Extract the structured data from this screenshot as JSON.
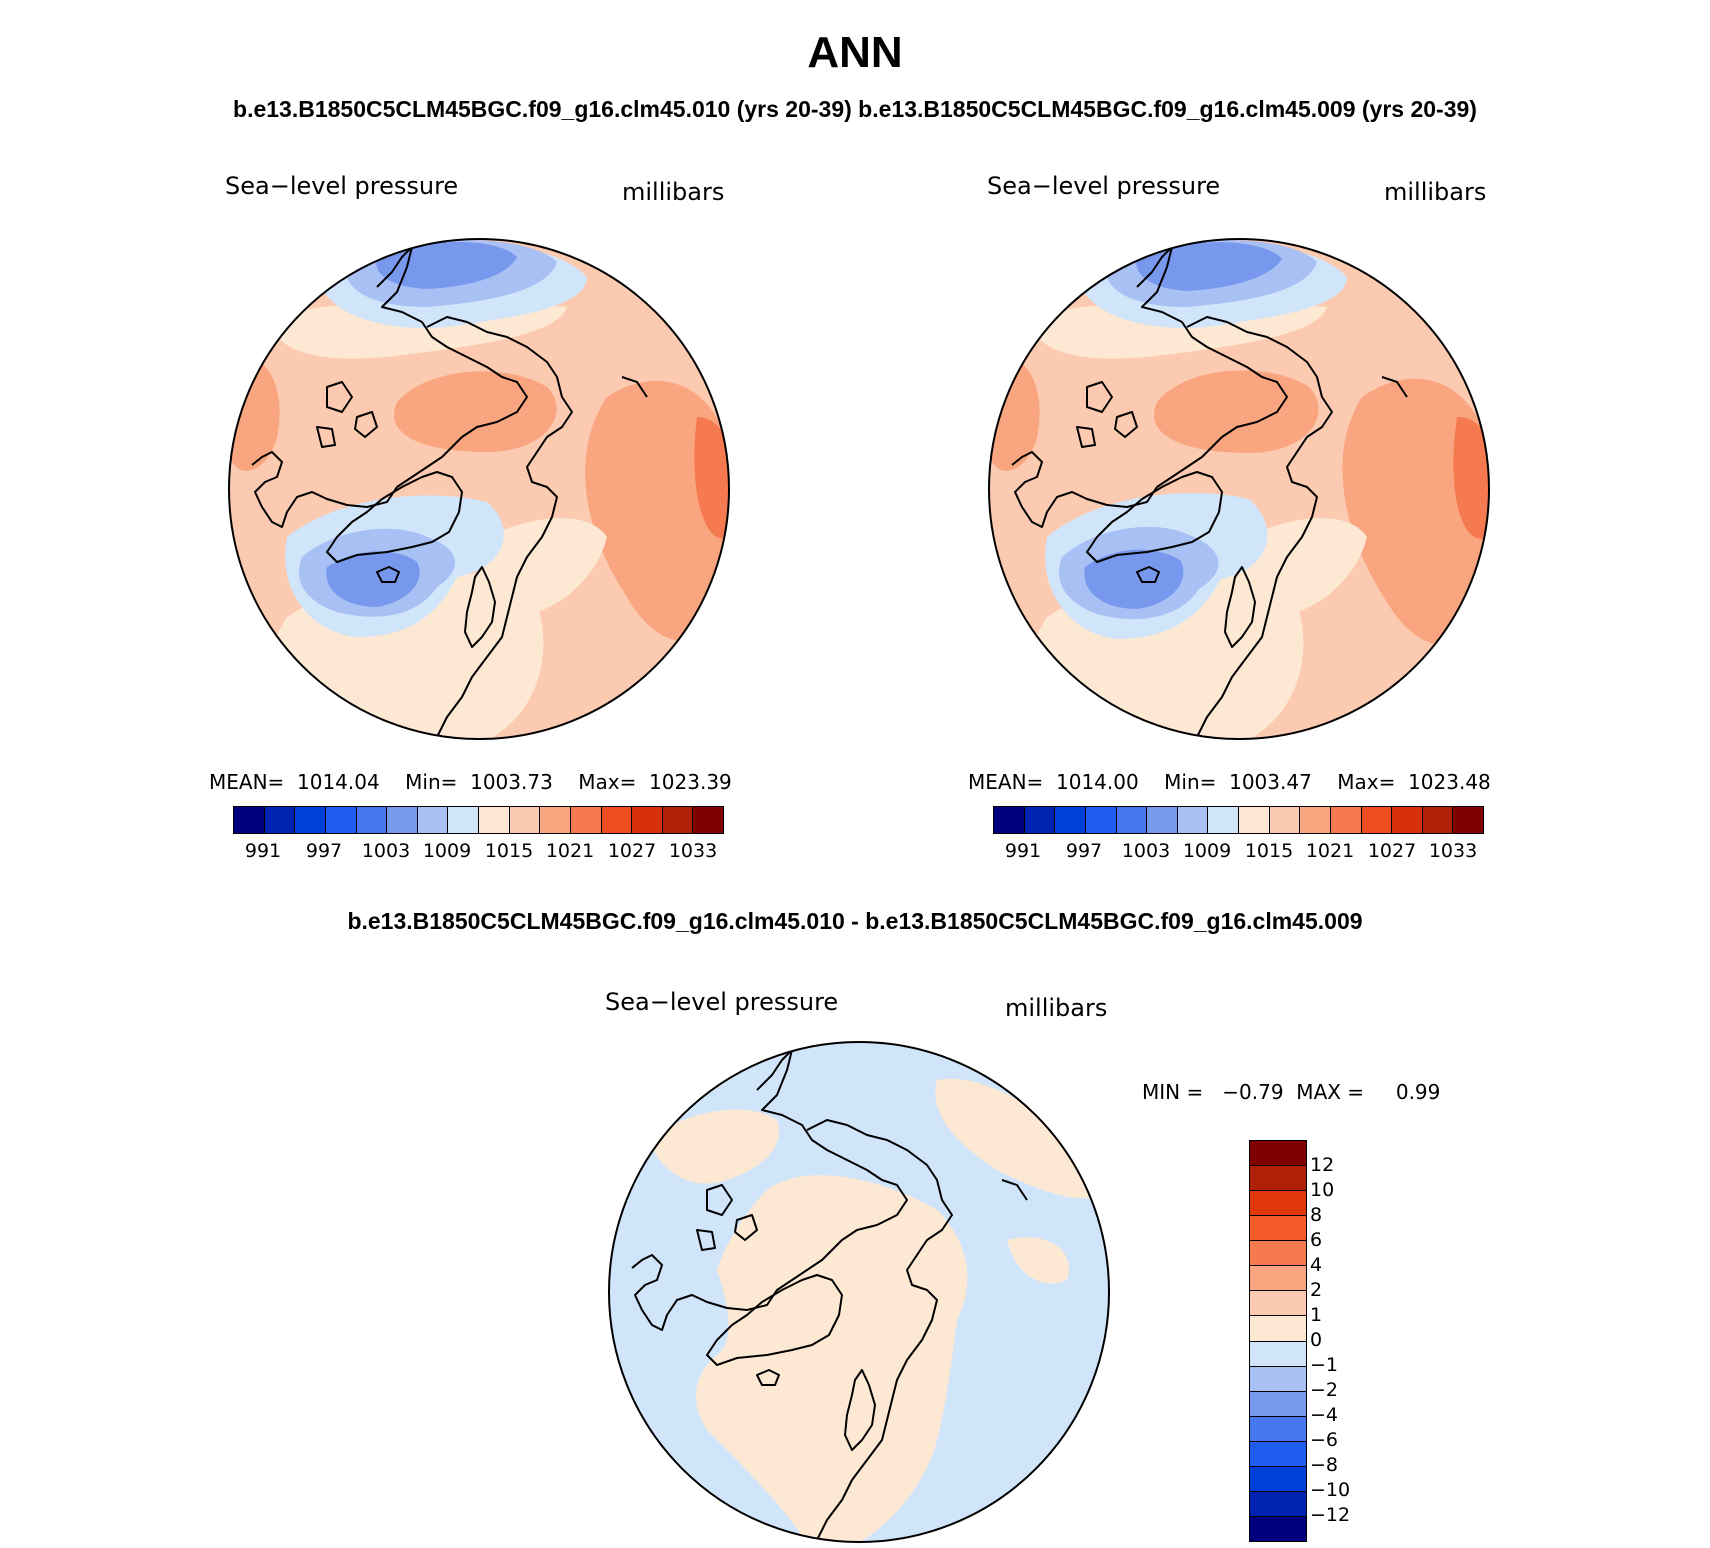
{
  "title": "ANN",
  "case_title": "b.e13.B1850C5CLM45BGC.f09_g16.clm45.010 (yrs 20-39)  b.e13.B1850C5CLM45BGC.f09_g16.clm45.009 (yrs 20-39)",
  "diff_title": "b.e13.B1850C5CLM45BGC.f09_g16.clm45.010 - b.e13.B1850C5CLM45BGC.f09_g16.clm45.009",
  "panels": [
    {
      "variable": "Sea−level pressure",
      "units": "millibars",
      "stats": "MEAN=  1014.04    Min=  1003.73    Max=  1023.39"
    },
    {
      "variable": "Sea−level pressure",
      "units": "millibars",
      "stats": "MEAN=  1014.00    Min=  1003.47    Max=  1023.48"
    }
  ],
  "diff_panel": {
    "variable": "Sea−level pressure",
    "units": "millibars",
    "minmax": "MIN =   −0.79  MAX =     0.99"
  },
  "colorbar": {
    "colors": [
      "#00007f",
      "#0022b0",
      "#0040d8",
      "#1f5cf0",
      "#4878f0",
      "#7898ee",
      "#a8c0f4",
      "#d0e4fa",
      "#fde8d4",
      "#fccab0",
      "#f8a580",
      "#f57a50",
      "#ef4d20",
      "#d8300c",
      "#b02008",
      "#800000"
    ],
    "tick_labels": [
      "991",
      "997",
      "1003",
      "1009",
      "1015",
      "1021",
      "1027",
      "1033"
    ]
  },
  "diff_colorbar": {
    "colors_top_to_bottom": [
      "#800000",
      "#b02008",
      "#e0380c",
      "#f55a28",
      "#f57a50",
      "#f8a580",
      "#fccab0",
      "#fde8d4",
      "#d0e4fa",
      "#a8c0f4",
      "#7898ee",
      "#4878f0",
      "#1f5cf0",
      "#0040d8",
      "#0022b0",
      "#00007f"
    ],
    "tick_labels_top_to_bottom": [
      "12",
      "10",
      "8",
      "6",
      "4",
      "2",
      "1",
      "0",
      "−1",
      "−2",
      "−4",
      "−6",
      "−8",
      "−10",
      "−12"
    ]
  },
  "map_colors": {
    "low3": "#7898ee",
    "low2": "#a8c0f4",
    "low1": "#d0e4fa",
    "high1": "#fde8d4",
    "high2": "#fccab0",
    "high3": "#f8a580",
    "high4": "#f57a50",
    "diff_pos": "#fde8d4",
    "diff_neg": "#d0e4fa",
    "coast": "#000000"
  }
}
